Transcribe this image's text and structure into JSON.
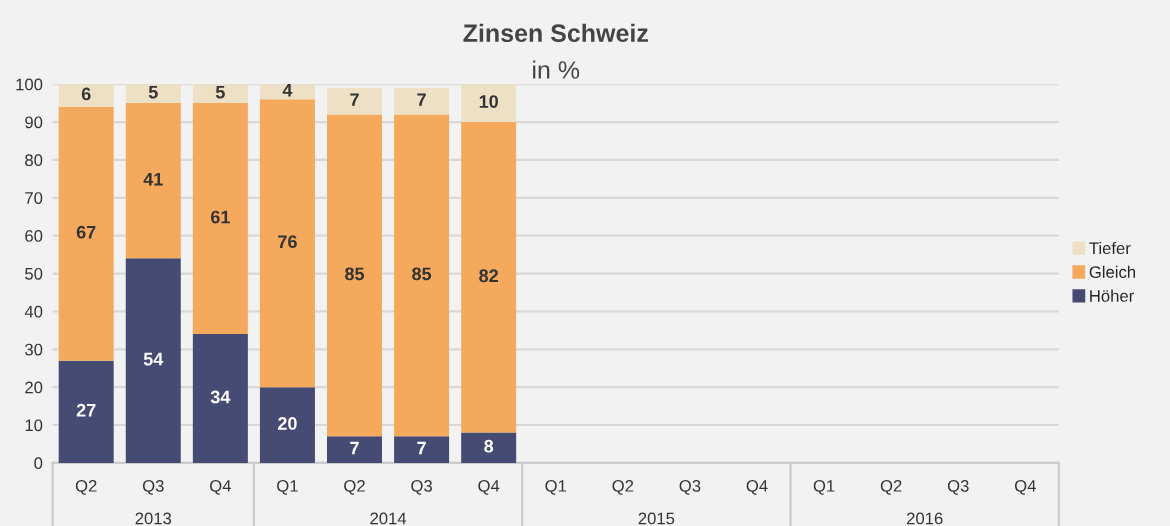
{
  "chart_data": {
    "type": "bar",
    "title": "Zinsen Schweiz",
    "subtitle": "in %",
    "categories": [
      "Q2",
      "Q3",
      "Q4",
      "Q1",
      "Q2",
      "Q3",
      "Q4",
      "Q1",
      "Q2",
      "Q3",
      "Q4",
      "Q1",
      "Q2",
      "Q3",
      "Q4"
    ],
    "annotations": [
      "2013",
      "2014",
      "2015",
      "2016"
    ],
    "series": [
      {
        "name": "Höher",
        "color": "#454b73",
        "values": [
          27,
          54,
          34,
          20,
          7,
          7,
          8,
          null,
          null,
          null,
          null,
          null,
          null,
          null,
          null
        ]
      },
      {
        "name": "Gleich",
        "color": "#f5a95c",
        "values": [
          67,
          41,
          61,
          76,
          85,
          85,
          82,
          null,
          null,
          null,
          null,
          null,
          null,
          null,
          null
        ]
      },
      {
        "name": "Tiefer",
        "color": "#ede0c4",
        "values": [
          6,
          5,
          5,
          4,
          7,
          7,
          10,
          null,
          null,
          null,
          null,
          null,
          null,
          null,
          null
        ]
      }
    ],
    "stacked": true,
    "data_labels": true,
    "ylim": [
      0,
      100
    ],
    "yticks": [
      0,
      10,
      20,
      30,
      40,
      50,
      60,
      70,
      80,
      90,
      100
    ],
    "grid": "y",
    "legend": "right"
  }
}
